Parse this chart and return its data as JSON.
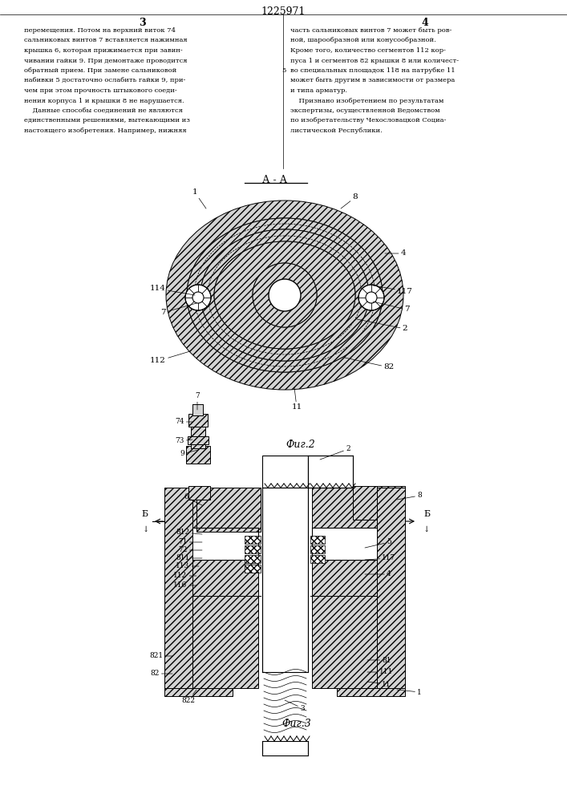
{
  "page_title": "1225971",
  "col3_label": "3",
  "col4_label": "4",
  "fig2_caption": "Фиг.2",
  "fig3_caption": "Фиг.3",
  "fig2_aa_label": "А - А",
  "col1_lines": [
    "перемещения. Потом на верхний виток 74",
    "сальниковых винтов 7 вставляется нажимная",
    "крышка 6, которая прижимается при завин-",
    "чивании гайки 9. При демонтаже проводится",
    "обратный прием. При замене сальниковой",
    "набивки 5 достаточно ослабить гайки 9, при-",
    "чем при этом прочность штыкового соеди-",
    "нения корпуса 1 и крышки 8 не нарушается.",
    "    Данные способы соединений не являются",
    "единственными решениями, вытекающими из",
    "настоящего изобретения. Например, нижняя"
  ],
  "col2_lines": [
    "часть сальниковых винтов 7 может быть ров-",
    "ной, шарообразной или конусообразной.",
    "Кроме того, количество сегментов 112 кор-",
    "пуса 1 и сегментов 82 крышки 8 или количест-",
    "во специальных площадок 118 на патрубке 11",
    "может быть другим в зависимости от размера",
    "и типа арматур.",
    "    Признано изобретением по результатам",
    "экспертизы, осуществленной Ведомством",
    "по изобретательству Чехословацкой Социа-",
    "листической Республики."
  ],
  "bg": "#ffffff",
  "lc": "#000000",
  "mfc": "#d4d4d4"
}
